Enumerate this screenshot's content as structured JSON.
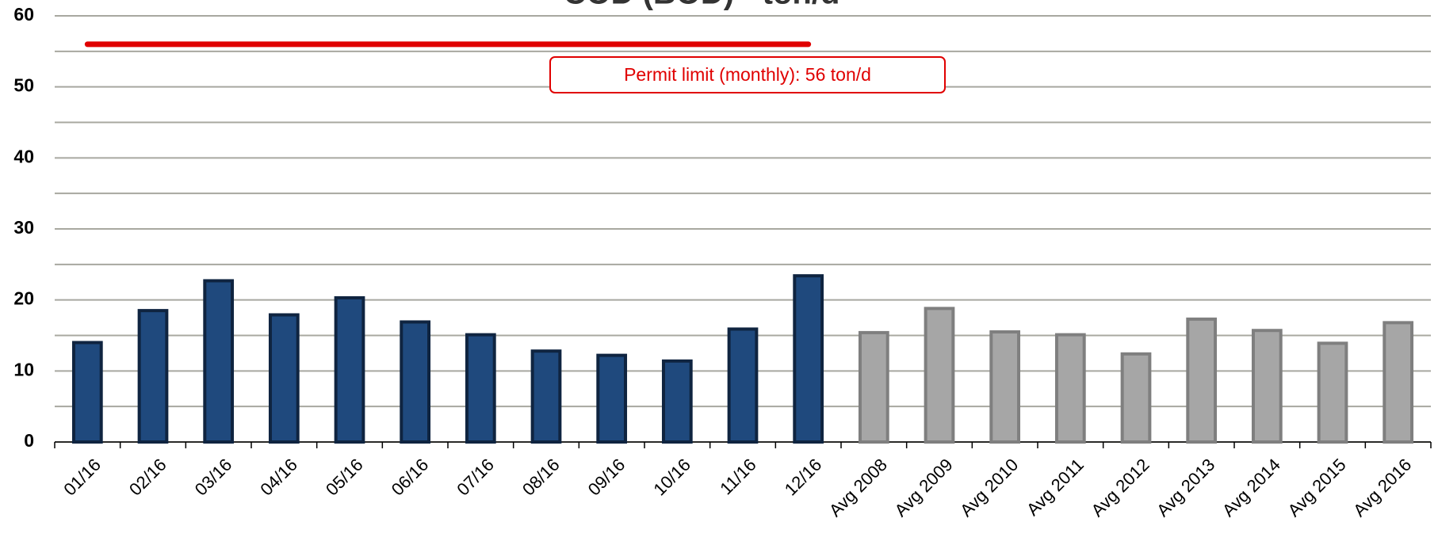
{
  "chart_data": {
    "type": "bar",
    "title": "COD (BOD) - ton/d",
    "categories": [
      "01/16",
      "02/16",
      "03/16",
      "04/16",
      "05/16",
      "06/16",
      "07/16",
      "08/16",
      "09/16",
      "10/16",
      "11/16",
      "12/16",
      "Avg 2008",
      "Avg 2009",
      "Avg 2010",
      "Avg 2011",
      "Avg 2012",
      "Avg 2013",
      "Avg 2014",
      "Avg 2015",
      "Avg 2016"
    ],
    "values": [
      14,
      18.5,
      22.7,
      17.9,
      20.3,
      16.9,
      15.1,
      12.8,
      12.2,
      11.4,
      15.9,
      23.4,
      15.4,
      18.8,
      15.5,
      15.1,
      12.4,
      17.3,
      15.7,
      13.9,
      16.8
    ],
    "colors": [
      "#1f497d",
      "#1f497d",
      "#1f497d",
      "#1f497d",
      "#1f497d",
      "#1f497d",
      "#1f497d",
      "#1f497d",
      "#1f497d",
      "#1f497d",
      "#1f497d",
      "#1f497d",
      "#a6a6a6",
      "#a6a6a6",
      "#a6a6a6",
      "#a6a6a6",
      "#a6a6a6",
      "#a6a6a6",
      "#a6a6a6",
      "#a6a6a6",
      "#a6a6a6"
    ],
    "edge_colors": [
      "#0f2440",
      "#0f2440",
      "#0f2440",
      "#0f2440",
      "#0f2440",
      "#0f2440",
      "#0f2440",
      "#0f2440",
      "#0f2440",
      "#0f2440",
      "#0f2440",
      "#0f2440",
      "#7f7f7f",
      "#7f7f7f",
      "#7f7f7f",
      "#7f7f7f",
      "#7f7f7f",
      "#7f7f7f",
      "#7f7f7f",
      "#7f7f7f",
      "#7f7f7f"
    ],
    "ylim": [
      0,
      60
    ],
    "yticks": [
      0,
      10,
      20,
      30,
      40,
      50,
      60
    ],
    "minor_yticks": [
      5,
      15,
      25,
      35,
      45,
      55
    ],
    "grid": true,
    "limit": {
      "value": 56,
      "color": "#e00000",
      "label": "Permit limit (monthly): 56 ton/d"
    }
  }
}
